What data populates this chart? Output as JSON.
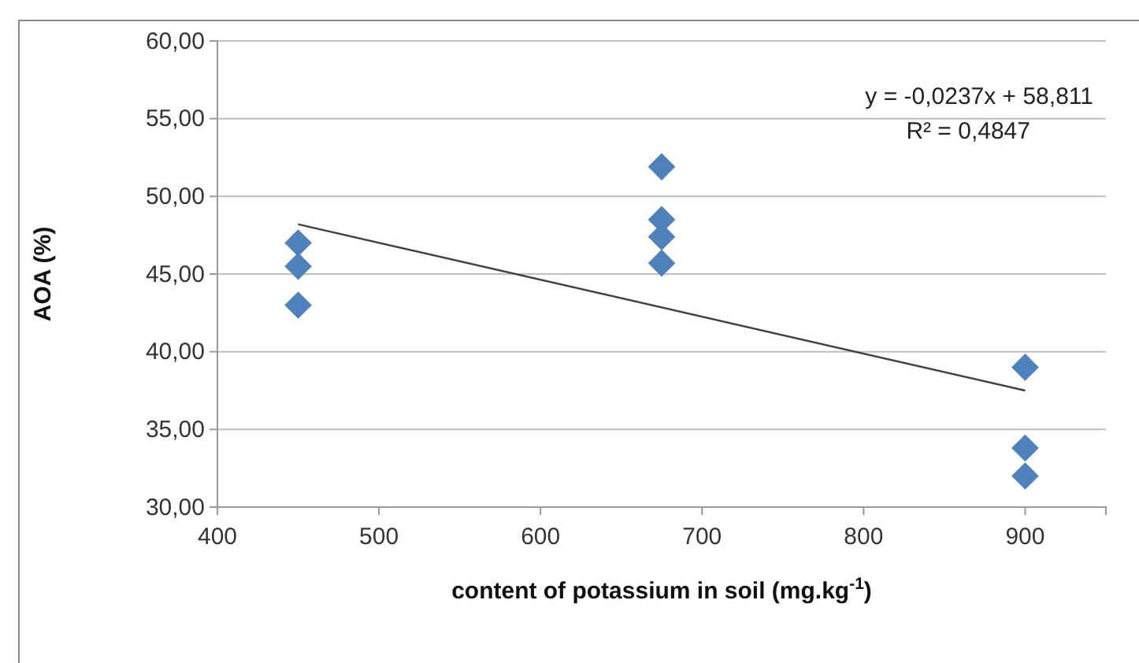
{
  "chart_data": {
    "type": "scatter",
    "xlabel": "content of potassium in soil (mg.kg$^{-1}$)",
    "ylabel": "AOA (%)",
    "xlim": [
      400,
      950
    ],
    "xticks": [
      400,
      500,
      600,
      700,
      800,
      900
    ],
    "ylim": [
      30,
      60
    ],
    "yticks": [
      {
        "value": 30,
        "label": "30,00"
      },
      {
        "value": 35,
        "label": "35,00"
      },
      {
        "value": 40,
        "label": "40,00"
      },
      {
        "value": 45,
        "label": "45,00"
      },
      {
        "value": 50,
        "label": "50,00"
      },
      {
        "value": 55,
        "label": "55,00"
      },
      {
        "value": 60,
        "label": "60,00"
      }
    ],
    "grid": "y",
    "series": [
      {
        "marker": "diamond",
        "color": "#4f81bd",
        "x": [
          450,
          450,
          450,
          675,
          675,
          675,
          675,
          900,
          900,
          900
        ],
        "values": [
          47.0,
          45.5,
          43.0,
          51.9,
          48.5,
          47.4,
          45.7,
          39.0,
          33.8,
          32.0
        ]
      },
      {
        "type": "line",
        "marker": "none",
        "color": "#404040",
        "x": [
          450,
          900
        ],
        "values": [
          48.2,
          37.5
        ]
      }
    ],
    "annotations": [
      "y = -0,0237x + 58,811",
      "R² = 0,4847"
    ]
  }
}
